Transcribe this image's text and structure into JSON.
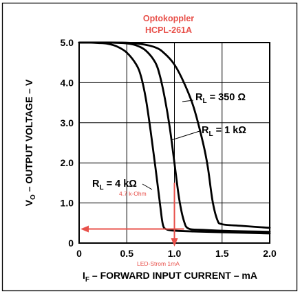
{
  "chart_data": {
    "type": "line",
    "title_lines": [
      "Optokoppler",
      "HCPL-261A"
    ],
    "title_color": "#e8504a",
    "xlabel": {
      "prefix": "I",
      "sub": "F",
      "rest": " – FORWARD INPUT CURRENT – mA"
    },
    "ylabel": {
      "prefix": "V",
      "sub": "O",
      "rest": " – OUTPUT VOLTAGE – V"
    },
    "xlim": [
      0,
      2.0
    ],
    "ylim": [
      0,
      5.0
    ],
    "x_ticks": [
      {
        "v": 0,
        "label": "0"
      },
      {
        "v": 0.5,
        "label": "0.5"
      },
      {
        "v": 1.0,
        "label": "1.0"
      },
      {
        "v": 1.5,
        "label": "1.5"
      },
      {
        "v": 2.0,
        "label": "2.0"
      }
    ],
    "y_ticks": [
      {
        "v": 0,
        "label": "0"
      },
      {
        "v": 1.0,
        "label": "1.0"
      },
      {
        "v": 2.0,
        "label": "2.0"
      },
      {
        "v": 3.0,
        "label": "3.0"
      },
      {
        "v": 4.0,
        "label": "4.0"
      },
      {
        "v": 5.0,
        "label": "5.0"
      }
    ],
    "grid": true,
    "series": [
      {
        "name": "R_L = 4 kΩ",
        "label_parts": {
          "r": "R",
          "sub": "L",
          "rest": " = 4 kΩ"
        },
        "points": [
          [
            0.0,
            5.0
          ],
          [
            0.1,
            5.0
          ],
          [
            0.2,
            4.99
          ],
          [
            0.3,
            4.97
          ],
          [
            0.4,
            4.9
          ],
          [
            0.5,
            4.75
          ],
          [
            0.6,
            4.45
          ],
          [
            0.65,
            4.15
          ],
          [
            0.7,
            3.6
          ],
          [
            0.75,
            2.8
          ],
          [
            0.8,
            1.9
          ],
          [
            0.85,
            0.95
          ],
          [
            0.88,
            0.45
          ],
          [
            0.92,
            0.34
          ],
          [
            1.0,
            0.31
          ],
          [
            1.2,
            0.29
          ],
          [
            1.5,
            0.27
          ],
          [
            2.0,
            0.24
          ]
        ]
      },
      {
        "name": "R_L = 1 kΩ",
        "label_parts": {
          "r": "R",
          "sub": "L",
          "rest": " = 1 kΩ"
        },
        "points": [
          [
            0.0,
            5.0
          ],
          [
            0.3,
            5.0
          ],
          [
            0.5,
            4.98
          ],
          [
            0.6,
            4.93
          ],
          [
            0.7,
            4.8
          ],
          [
            0.8,
            4.5
          ],
          [
            0.85,
            4.15
          ],
          [
            0.9,
            3.6
          ],
          [
            0.95,
            2.9
          ],
          [
            1.0,
            2.0
          ],
          [
            1.05,
            1.1
          ],
          [
            1.1,
            0.55
          ],
          [
            1.15,
            0.36
          ],
          [
            1.3,
            0.33
          ],
          [
            1.6,
            0.3
          ],
          [
            2.0,
            0.28
          ]
        ]
      },
      {
        "name": "R_L = 350 Ω",
        "label_parts": {
          "r": "R",
          "sub": "L",
          "rest": " = 350 Ω"
        },
        "points": [
          [
            0.0,
            5.0
          ],
          [
            0.4,
            5.0
          ],
          [
            0.6,
            4.98
          ],
          [
            0.8,
            4.88
          ],
          [
            0.9,
            4.72
          ],
          [
            1.0,
            4.45
          ],
          [
            1.1,
            4.0
          ],
          [
            1.2,
            3.4
          ],
          [
            1.3,
            2.5
          ],
          [
            1.35,
            1.9
          ],
          [
            1.4,
            1.05
          ],
          [
            1.45,
            0.58
          ],
          [
            1.5,
            0.47
          ],
          [
            1.7,
            0.43
          ],
          [
            2.0,
            0.38
          ]
        ]
      }
    ],
    "annotations": {
      "resistor_note": "4.7 k-Ohm",
      "current_note": "LED-Strom 1mA",
      "marker_x": 1.0,
      "marker_y": 0.35,
      "marker_color": "#e8504a"
    }
  }
}
